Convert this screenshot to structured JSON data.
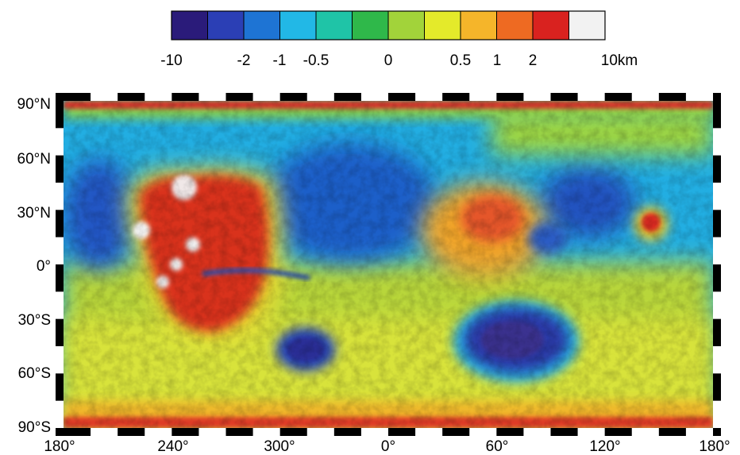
{
  "colorbar": {
    "colors": [
      "#2a1b7a",
      "#2b3fb5",
      "#1e74d4",
      "#22b8e6",
      "#1fc4a7",
      "#2fb84a",
      "#a2d33a",
      "#e4ea2a",
      "#f5b52a",
      "#ee6a22",
      "#d9221f",
      "#f2f2f2"
    ],
    "tick_labels": [
      "-10",
      "-2",
      "-1",
      "-0.5",
      "0",
      "0.5",
      "1",
      "2",
      "10km"
    ]
  },
  "map": {
    "lat_labels": [
      "90°N",
      "60°N",
      "30°N",
      "0°",
      "30°S",
      "60°S",
      "90°S"
    ],
    "lon_labels": [
      "180°",
      "240°",
      "300°",
      "0°",
      "60°",
      "120°",
      "180°"
    ]
  }
}
